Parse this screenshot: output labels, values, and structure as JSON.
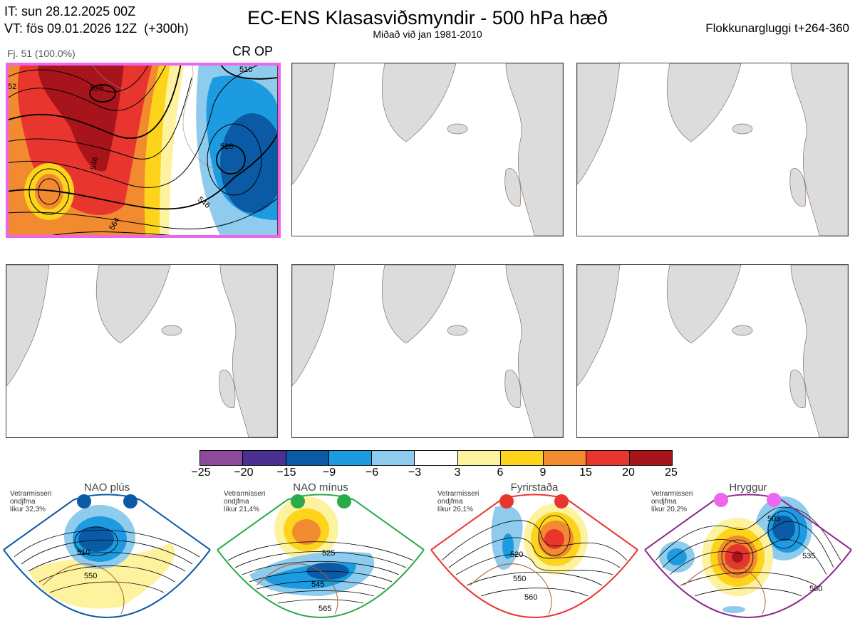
{
  "header": {
    "init_time": "IT: sun 28.12.2025 00Z",
    "valid_time": "VT: fös 09.01.2026 12Z  (+300h)",
    "title": "EC-ENS Klasasviðsmyndir - 500 hPa hæð",
    "subtitle": "Miðað við jan 1981-2010",
    "window": "Flokkunargluggi t+264-360"
  },
  "panel1": {
    "label": "Fj. 51 (100.0%)",
    "tag": "CR OP",
    "contours": [
      "528",
      "528",
      "546",
      "546",
      "564",
      "528",
      "510",
      "52"
    ]
  },
  "colorbar": {
    "colors": [
      "#8b4a9c",
      "#4b2f91",
      "#0b5aa6",
      "#1d9be0",
      "#8ecbec",
      "#ffffff",
      "#fdf29e",
      "#fdd41b",
      "#f28a30",
      "#e8362f",
      "#a8141c"
    ],
    "ticks": [
      "−25",
      "−20",
      "−15",
      "−9",
      "−6",
      "−3",
      "3",
      "6",
      "9",
      "15",
      "20",
      "25"
    ]
  },
  "regimes": [
    {
      "name": "NAO plús",
      "line1": "Vetrarmisseri",
      "line2": "ondjfma",
      "line3": "líkur 32,3%",
      "color": "#0b5aa6",
      "c1": "510",
      "c2": "550"
    },
    {
      "name": "NAO mínus",
      "line1": "Vetrarmisseri",
      "line2": "ondjfma",
      "line3": "líkur 21,4%",
      "color": "#2aaa4a",
      "c1": "525",
      "c2": "545",
      "c3": "565"
    },
    {
      "name": "Fyrirstaða",
      "line1": "Vetrarmisseri",
      "line2": "ondjfma",
      "line3": "líkur 26,1%",
      "color": "#e8362f",
      "c1": "520",
      "c2": "550",
      "c3": "560"
    },
    {
      "name": "Hryggur",
      "line1": "Vetrarmisseri",
      "line2": "ondjfma",
      "line3": "líkur 20,2%",
      "color": "#8b2a8c",
      "c1": "505",
      "c2": "535",
      "c3": "560"
    }
  ]
}
